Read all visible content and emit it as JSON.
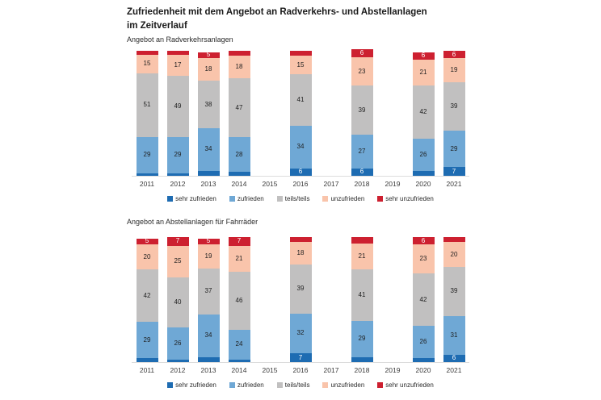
{
  "page": {
    "title_line1": "Zufriedenheit mit dem Angebot an Radverkehrs- und Abstellanlagen",
    "title_line2": "im Zeitverlauf"
  },
  "chart_data": [
    {
      "type": "bar",
      "stacked": true,
      "title": "Angebot an Radverkehrsanlagen",
      "categories": [
        "2011",
        "2012",
        "2013",
        "2014",
        "2015",
        "2016",
        "2017",
        "2018",
        "2019",
        "2020",
        "2021"
      ],
      "ylim": [
        0,
        100
      ],
      "grid": false,
      "legend_position": "bottom",
      "unit": "percent",
      "series": [
        {
          "name": "sehr zufrieden",
          "color": "#1e6cb2",
          "text_color": "#ffffff",
          "values": [
            2,
            2,
            4,
            3,
            null,
            6,
            null,
            6,
            null,
            4,
            7
          ],
          "shown_labels": [
            "",
            "",
            "",
            "",
            null,
            "6",
            null,
            "6",
            null,
            "",
            "7"
          ]
        },
        {
          "name": "zufrieden",
          "color": "#6fa8d5",
          "text_color": "#1f1f1f",
          "values": [
            29,
            29,
            34,
            28,
            null,
            34,
            null,
            27,
            null,
            26,
            29
          ],
          "shown_labels": [
            "29",
            "29",
            "34",
            "28",
            null,
            "34",
            null,
            "27",
            null,
            "26",
            "29"
          ]
        },
        {
          "name": "teils/teils",
          "color": "#c1c0c0",
          "text_color": "#1f1f1f",
          "values": [
            51,
            49,
            38,
            47,
            null,
            41,
            null,
            39,
            null,
            42,
            39
          ],
          "shown_labels": [
            "51",
            "49",
            "38",
            "47",
            null,
            "41",
            null,
            "39",
            null,
            "42",
            "39"
          ]
        },
        {
          "name": "unzufrieden",
          "color": "#f9c4ab",
          "text_color": "#1f1f1f",
          "values": [
            15,
            17,
            18,
            18,
            null,
            15,
            null,
            23,
            null,
            21,
            19
          ],
          "shown_labels": [
            "15",
            "17",
            "18",
            "18",
            null,
            "15",
            null,
            "23",
            null,
            "21",
            "19"
          ]
        },
        {
          "name": "sehr unzufrieden",
          "color": "#cd2030",
          "text_color": "#ffffff",
          "values": [
            3,
            3,
            5,
            4,
            null,
            4,
            null,
            6,
            null,
            6,
            6
          ],
          "shown_labels": [
            "",
            "",
            "5",
            "",
            null,
            "",
            null,
            "6",
            null,
            "6",
            "6"
          ]
        }
      ]
    },
    {
      "type": "bar",
      "stacked": true,
      "title": "Angebot an Abstellanlagen für Fahrräder",
      "categories": [
        "2011",
        "2012",
        "2013",
        "2014",
        "2015",
        "2016",
        "2017",
        "2018",
        "2019",
        "2020",
        "2021"
      ],
      "ylim": [
        0,
        100
      ],
      "grid": false,
      "legend_position": "bottom",
      "unit": "percent",
      "series": [
        {
          "name": "sehr zufrieden",
          "color": "#1e6cb2",
          "text_color": "#ffffff",
          "values": [
            3,
            2,
            4,
            2,
            null,
            7,
            null,
            4,
            null,
            3,
            6
          ],
          "shown_labels": [
            "",
            "",
            "",
            "",
            null,
            "7",
            null,
            "",
            null,
            "",
            "6"
          ]
        },
        {
          "name": "zufrieden",
          "color": "#6fa8d5",
          "text_color": "#1f1f1f",
          "values": [
            29,
            26,
            34,
            24,
            null,
            32,
            null,
            29,
            null,
            26,
            31
          ],
          "shown_labels": [
            "29",
            "26",
            "34",
            "24",
            null,
            "32",
            null,
            "29",
            null,
            "26",
            "31"
          ]
        },
        {
          "name": "teils/teils",
          "color": "#c1c0c0",
          "text_color": "#1f1f1f",
          "values": [
            42,
            40,
            37,
            46,
            null,
            39,
            null,
            41,
            null,
            42,
            39
          ],
          "shown_labels": [
            "42",
            "40",
            "37",
            "46",
            null,
            "39",
            null,
            "41",
            null,
            "42",
            "39"
          ]
        },
        {
          "name": "unzufrieden",
          "color": "#f9c4ab",
          "text_color": "#1f1f1f",
          "values": [
            20,
            25,
            19,
            21,
            null,
            18,
            null,
            21,
            null,
            23,
            20
          ],
          "shown_labels": [
            "20",
            "25",
            "19",
            "21",
            null,
            "18",
            null,
            "21",
            null,
            "23",
            "20"
          ]
        },
        {
          "name": "sehr unzufrieden",
          "color": "#cd2030",
          "text_color": "#ffffff",
          "values": [
            5,
            7,
            5,
            7,
            null,
            4,
            null,
            5,
            null,
            6,
            4
          ],
          "shown_labels": [
            "5",
            "7",
            "5",
            "7",
            null,
            "",
            null,
            "",
            null,
            "6",
            ""
          ]
        }
      ]
    }
  ]
}
